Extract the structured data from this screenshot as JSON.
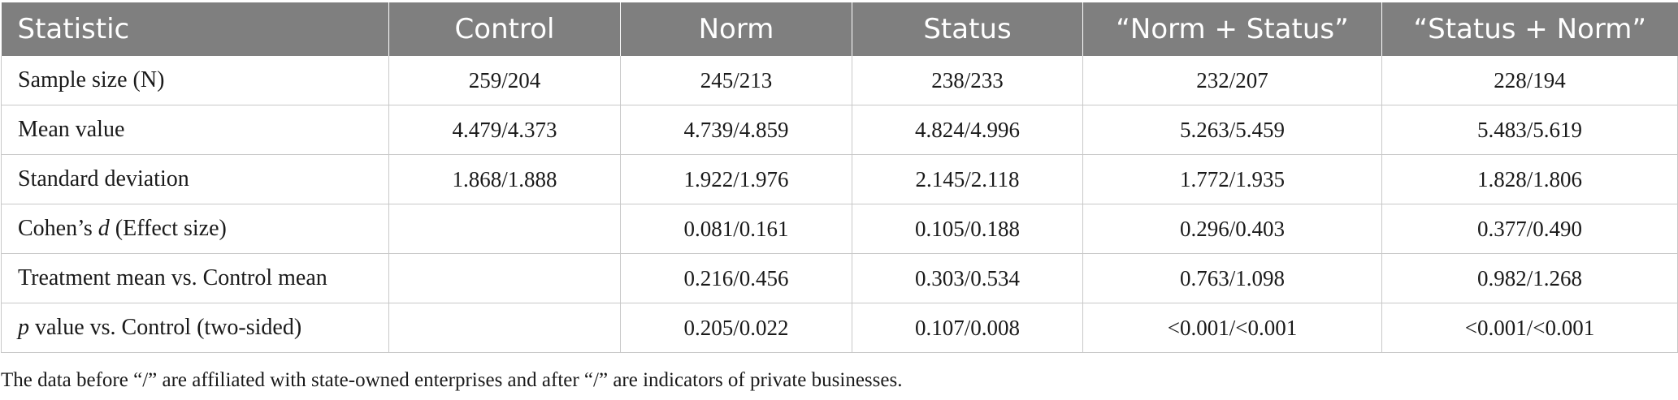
{
  "table": {
    "headers": [
      "Statistic",
      "Control",
      "Norm",
      "Status",
      "“Norm + Status”",
      "“Status + Norm”"
    ],
    "rows": [
      {
        "label": "Sample size (N)",
        "cells": [
          "259/204",
          "245/213",
          "238/233",
          "232/207",
          "228/194"
        ]
      },
      {
        "label": "Mean value",
        "cells": [
          "4.479/4.373",
          "4.739/4.859",
          "4.824/4.996",
          "5.263/5.459",
          "5.483/5.619"
        ]
      },
      {
        "label": "Standard deviation",
        "cells": [
          "1.868/1.888",
          "1.922/1.976",
          "2.145/2.118",
          "1.772/1.935",
          "1.828/1.806"
        ]
      },
      {
        "label_prefix": "Cohen’s ",
        "label_italic": "d",
        "label_suffix": " (Effect size)",
        "cells": [
          "",
          "0.081/0.161",
          "0.105/0.188",
          "0.296/0.403",
          "0.377/0.490"
        ]
      },
      {
        "label": "Treatment mean vs. Control mean",
        "cells": [
          "",
          "0.216/0.456",
          "0.303/0.534",
          "0.763/1.098",
          "0.982/1.268"
        ]
      },
      {
        "label_prefix": "",
        "label_italic": "p",
        "label_suffix": " value vs. Control (two-sided)",
        "cells": [
          "",
          "0.205/0.022",
          "0.107/0.008",
          "<0.001/<0.001",
          "<0.001/<0.001"
        ]
      }
    ]
  },
  "footnote": "The data before “/” are affiliated with state-owned enterprises and after “/” are indicators of private businesses.",
  "colors": {
    "header_bg": "#7f7f7f",
    "header_text": "#ffffff",
    "grid": "#c8c8c8"
  }
}
